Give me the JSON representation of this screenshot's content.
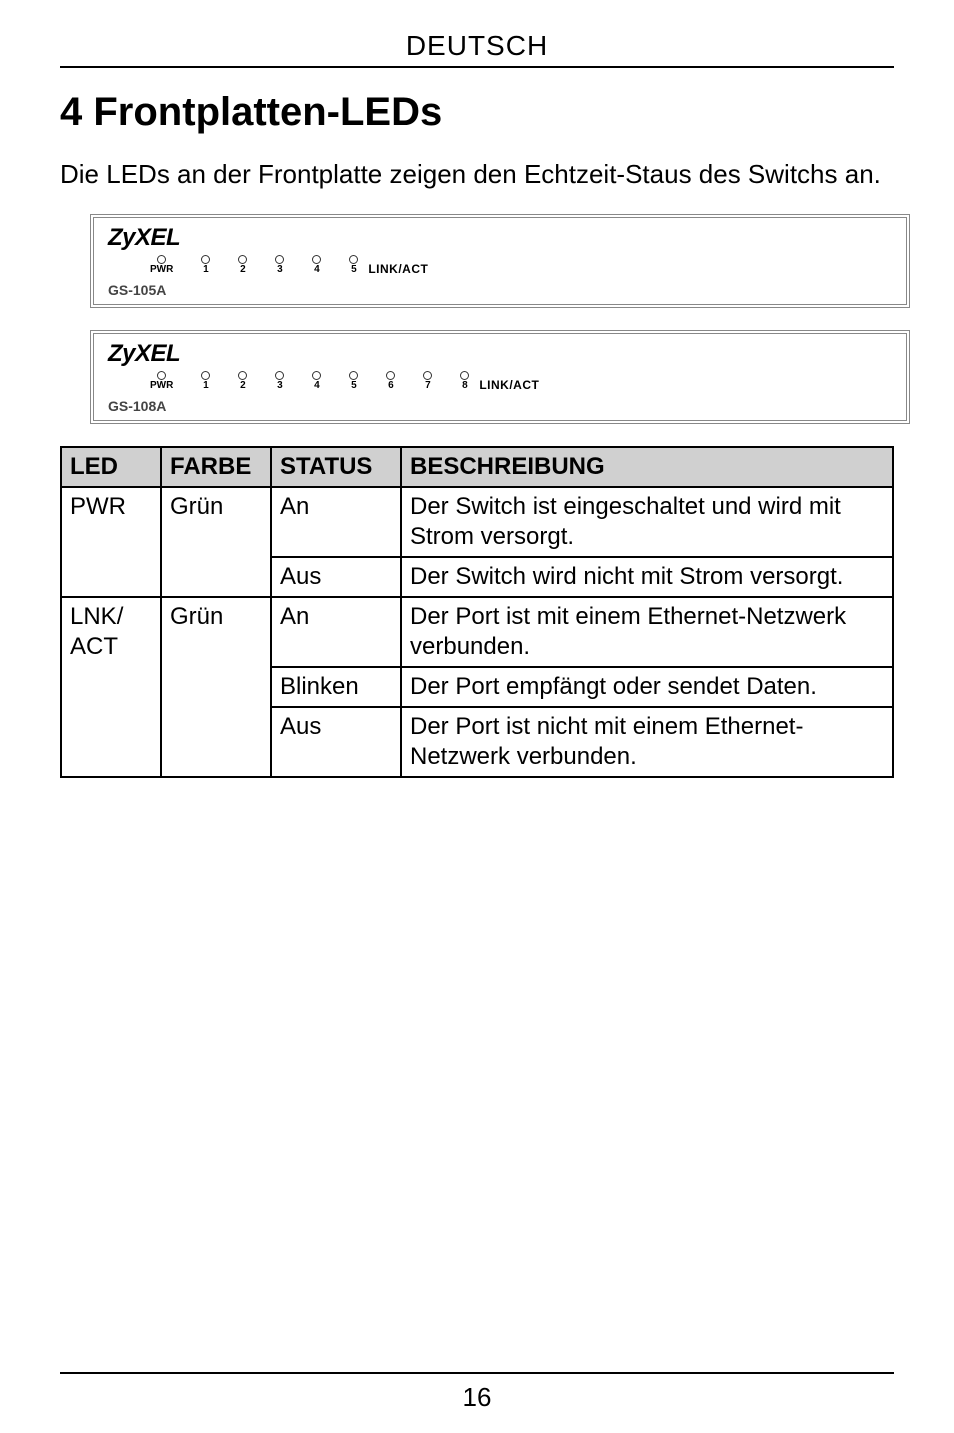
{
  "header": {
    "language": "DEUTSCH"
  },
  "section": {
    "number": "4",
    "title": "Frontplatten-LEDs",
    "intro": "Die LEDs an der Frontplatte zeigen den Echtzeit-Staus des Switchs an."
  },
  "panels": [
    {
      "logo": "ZyXEL",
      "model": "GS-105A",
      "pwr_label": "PWR",
      "ports": [
        "1",
        "2",
        "3",
        "4",
        "5"
      ],
      "link_act": "LINK/ACT"
    },
    {
      "logo": "ZyXEL",
      "model": "GS-108A",
      "pwr_label": "PWR",
      "ports": [
        "1",
        "2",
        "3",
        "4",
        "5",
        "6",
        "7",
        "8"
      ],
      "link_act": "LINK/ACT"
    }
  ],
  "table": {
    "headers": {
      "led": "LED",
      "farbe": "FARBE",
      "status": "STATUS",
      "besch": "BESCHREIBUNG"
    },
    "rows": [
      {
        "led": "PWR",
        "farbe": "Grün",
        "status": "An",
        "desc": "Der Switch ist eingeschaltet und wird mit Strom versorgt."
      },
      {
        "led": "",
        "farbe": "",
        "status": "Aus",
        "desc": "Der Switch wird nicht mit Strom versorgt."
      },
      {
        "led": "LNK/\nACT",
        "farbe": "Grün",
        "status": "An",
        "desc": "Der Port ist mit einem Ethernet-Netzwerk verbunden."
      },
      {
        "led": "",
        "farbe": "",
        "status": "Blinken",
        "desc": "Der Port empfängt oder sendet Daten."
      },
      {
        "led": "",
        "farbe": "",
        "status": "Aus",
        "desc": "Der Port ist nicht mit einem Ethernet-Netzwerk verbunden."
      }
    ]
  },
  "footer": {
    "page": "16"
  }
}
